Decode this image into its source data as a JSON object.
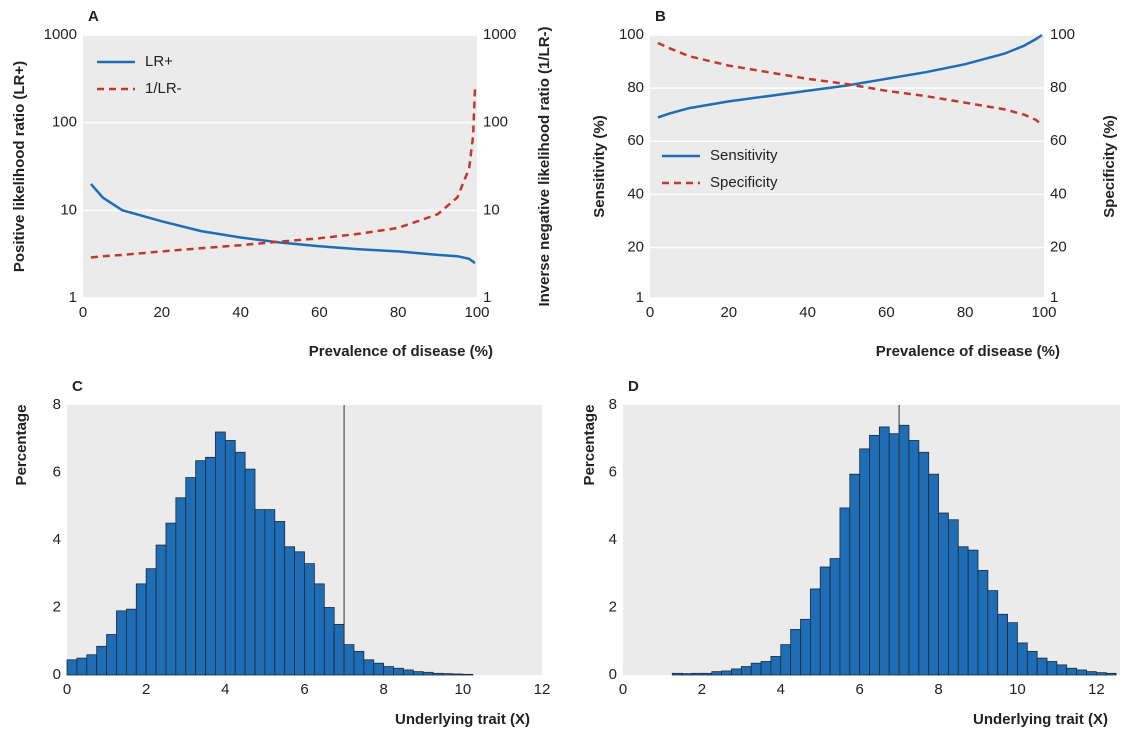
{
  "chart_data": [
    {
      "type": "line",
      "panel_label": "A",
      "x_label": "Prevalence of disease (%)",
      "y_label": "Positive likelihood ratio (LR+)",
      "y2_label": "Inverse negative likelihood ratio (1/LR-)",
      "x": [
        2,
        5,
        10,
        20,
        30,
        40,
        50,
        60,
        70,
        80,
        90,
        95,
        98,
        99,
        99.5
      ],
      "series": [
        {
          "name": "LR+",
          "color": "#1f6eb5",
          "style": "solid",
          "values": [
            20,
            14,
            10,
            7.5,
            5.8,
            4.9,
            4.3,
            3.9,
            3.6,
            3.4,
            3.1,
            3.0,
            2.8,
            2.6,
            2.5
          ]
        },
        {
          "name": "1/LR-",
          "color": "#c0392b",
          "style": "dashed",
          "axis": "y2",
          "values": [
            2.9,
            3.0,
            3.1,
            3.4,
            3.7,
            4.0,
            4.4,
            4.8,
            5.4,
            6.3,
            9,
            14,
            30,
            70,
            250
          ]
        }
      ],
      "xlim": [
        0,
        100
      ],
      "xticks": [
        0,
        20,
        40,
        60,
        80,
        100
      ],
      "ylim": [
        1,
        1000
      ],
      "yticks": [
        1,
        10,
        100,
        1000
      ],
      "y2lim": [
        1,
        1000
      ],
      "y2ticks": [
        1,
        10,
        100,
        1000
      ],
      "log_scale": true,
      "grid": true,
      "legend": "upper left"
    },
    {
      "type": "line",
      "panel_label": "B",
      "x_label": "Prevalence of disease (%)",
      "y_label": "Sensitivity (%)",
      "y2_label": "Specificity (%)",
      "x": [
        2,
        5,
        10,
        20,
        30,
        40,
        50,
        60,
        70,
        80,
        90,
        95,
        98,
        99.5
      ],
      "series": [
        {
          "name": "Sensitivity",
          "color": "#1f6eb5",
          "style": "solid",
          "values": [
            69,
            70.5,
            72.5,
            75,
            77,
            79,
            81,
            83.5,
            86,
            89,
            93,
            96,
            98.5,
            100
          ]
        },
        {
          "name": "Specificity",
          "color": "#c0392b",
          "style": "dashed",
          "axis": "y2",
          "values": [
            97,
            95,
            92,
            88.5,
            86,
            83.5,
            81.5,
            79,
            77,
            74.5,
            72,
            70,
            68,
            66
          ]
        }
      ],
      "xlim": [
        0,
        100
      ],
      "xticks": [
        0,
        20,
        40,
        60,
        80,
        100
      ],
      "ylim": [
        1,
        100
      ],
      "yticks": [
        1,
        20,
        40,
        60,
        80,
        100
      ],
      "y2lim": [
        1,
        100
      ],
      "y2ticks": [
        1,
        20,
        40,
        60,
        80,
        100
      ],
      "log_scale": false,
      "grid": true,
      "legend": "center left"
    },
    {
      "type": "histogram",
      "panel_label": "C",
      "x_label": "Underlying trait (X)",
      "y_label": "Percentage",
      "color": "#1f6eb5",
      "vline": 7,
      "bins": [
        0,
        0.25,
        0.5,
        0.75,
        1,
        1.25,
        1.5,
        1.75,
        2,
        2.25,
        2.5,
        2.75,
        3,
        3.25,
        3.5,
        3.75,
        4,
        4.25,
        4.5,
        4.75,
        5,
        5.25,
        5.5,
        5.75,
        6,
        6.25,
        6.5,
        6.75,
        7,
        7.25,
        7.5,
        7.75,
        8,
        8.25,
        8.5,
        8.75,
        9,
        9.25,
        9.5,
        9.75,
        10,
        10.25
      ],
      "values": [
        0.45,
        0.5,
        0.6,
        0.85,
        1.2,
        1.9,
        1.95,
        2.7,
        3.15,
        3.85,
        4.5,
        5.25,
        5.85,
        6.35,
        6.45,
        7.2,
        6.95,
        6.6,
        6.1,
        4.9,
        4.9,
        4.55,
        3.8,
        3.65,
        3.3,
        2.7,
        2.0,
        1.5,
        0.9,
        0.7,
        0.45,
        0.35,
        0.25,
        0.2,
        0.15,
        0.1,
        0.08,
        0.05,
        0.04,
        0.03,
        0.02
      ],
      "xlim": [
        0,
        12
      ],
      "xticks": [
        0,
        2,
        4,
        6,
        8,
        10,
        12
      ],
      "ylim": [
        0,
        8
      ],
      "yticks": [
        0,
        2,
        4,
        6,
        8
      ],
      "grid": false
    },
    {
      "type": "histogram",
      "panel_label": "D",
      "x_label": "Underlying trait (X)",
      "y_label": "Percentage",
      "color": "#1f6eb5",
      "vline": 7,
      "bins": [
        1.25,
        1.5,
        1.75,
        2,
        2.25,
        2.5,
        2.75,
        3,
        3.25,
        3.5,
        3.75,
        4,
        4.25,
        4.5,
        4.75,
        5,
        5.25,
        5.5,
        5.75,
        6,
        6.25,
        6.5,
        6.75,
        7,
        7.25,
        7.5,
        7.75,
        8,
        8.25,
        8.5,
        8.75,
        9,
        9.25,
        9.5,
        9.75,
        10,
        10.25,
        10.5,
        10.75,
        11,
        11.25,
        11.5,
        11.75,
        12,
        12.25,
        12.5
      ],
      "values": [
        0.05,
        0.04,
        0.05,
        0.05,
        0.1,
        0.12,
        0.18,
        0.25,
        0.35,
        0.4,
        0.55,
        0.9,
        1.35,
        1.65,
        2.55,
        3.2,
        3.45,
        4.95,
        5.95,
        6.7,
        7.1,
        7.35,
        7.15,
        7.4,
        6.95,
        6.6,
        5.95,
        4.8,
        4.6,
        3.8,
        3.7,
        3.1,
        2.5,
        1.8,
        1.55,
        0.95,
        0.7,
        0.5,
        0.4,
        0.3,
        0.2,
        0.15,
        0.1,
        0.07,
        0.05
      ],
      "xlim": [
        0,
        12.6
      ],
      "xticks": [
        0,
        2,
        4,
        6,
        8,
        10,
        12
      ],
      "ylim": [
        0,
        8
      ],
      "yticks": [
        0,
        2,
        4,
        6,
        8
      ],
      "grid": false
    }
  ]
}
